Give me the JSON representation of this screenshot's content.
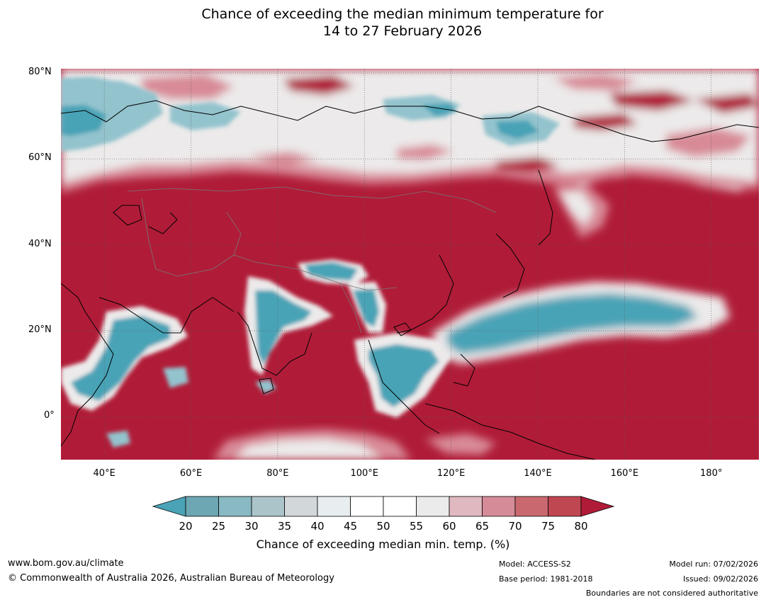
{
  "title": {
    "line1": "Chance of exceeding the median minimum temperature for",
    "line2": "14 to 27 February 2026"
  },
  "map": {
    "lat_ticks": [
      "80°N",
      "60°N",
      "40°N",
      "20°N",
      "0°"
    ],
    "lon_ticks": [
      "40°E",
      "60°E",
      "80°E",
      "100°E",
      "120°E",
      "140°E",
      "160°E",
      "180°"
    ],
    "extent": {
      "lon_min": 30,
      "lon_max": 191,
      "lat_min": -10,
      "lat_max": 81
    },
    "colors": {
      "high": "#b01c38",
      "mid_high": "#d88a97",
      "low": "#4aa3b6",
      "mid_low": "#93c3cd",
      "neutral": "#eceaea"
    }
  },
  "colorbar": {
    "ticks": [
      "20",
      "25",
      "30",
      "35",
      "40",
      "45",
      "50",
      "55",
      "60",
      "65",
      "70",
      "75",
      "80"
    ],
    "colors": [
      "#6da7b4",
      "#89b9c3",
      "#abc4ca",
      "#d2d8da",
      "#e8eef0",
      "#ffffff",
      "#ffffff",
      "#ecebec",
      "#e0b8bf",
      "#d58c98",
      "#c9696f",
      "#bf4752"
    ],
    "under_color": "#4aa3b6",
    "over_color": "#b01c38",
    "title": "Chance of exceeding median min. temp. (%)"
  },
  "footer": {
    "website": "www.bom.gov.au/climate",
    "copyright": "© Commonwealth of Australia 2026, Australian Bureau of Meteorology",
    "model": "Model: ACCESS-S2",
    "base_period": "Base period: 1981-2018",
    "model_run": "Model run: 07/02/2026",
    "issued": "Issued: 09/02/2026",
    "disclaimer": "Boundaries are not considered authoritative"
  }
}
